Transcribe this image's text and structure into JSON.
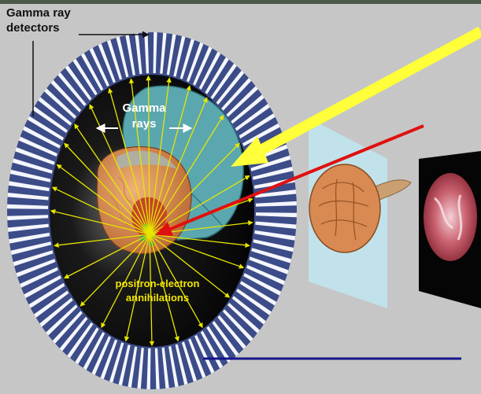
{
  "labels": {
    "detectors_line1": "Gamma ray",
    "detectors_line2": "detectors",
    "gamma_line1": "Gamma",
    "gamma_line2": "rays",
    "annihilation_line1": "positron-electron",
    "annihilation_line2": "annihilations"
  },
  "colors": {
    "background": "#c6c6c6",
    "ring_dark": "#3c4c88",
    "ring_light": "#f4f6fc",
    "scanner_interior": "#050505",
    "ray": "#e6e600",
    "big_arrow": "#ffff3a",
    "red_arrow": "#e01010",
    "body_cover": "#5aa7b0",
    "head": "#d88a52",
    "image_plane": "#bfe6f0",
    "underline": "#14148c"
  },
  "icons": {
    "head": "patient-head-icon",
    "brain": "brain-icon",
    "scan": "brain-scan-image-icon"
  }
}
